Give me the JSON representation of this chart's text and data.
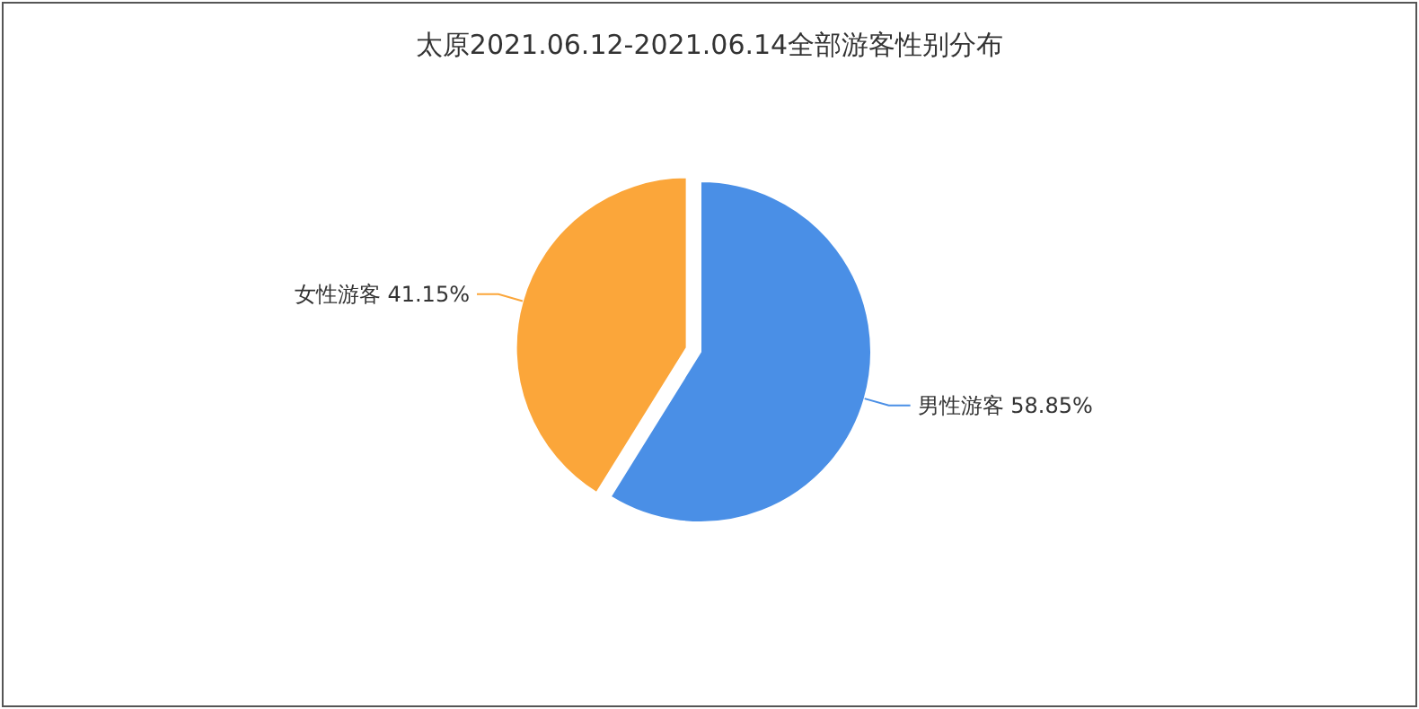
{
  "chart_data": {
    "type": "pie",
    "title": "太原2021.06.12-2021.06.14全部游客性别分布",
    "categories": [
      "男性游客",
      "女性游客"
    ],
    "values": [
      58.85,
      41.15
    ],
    "colors": [
      "#4a8fe6",
      "#fba63a"
    ],
    "value_labels": [
      "58.85%",
      "41.15%"
    ]
  }
}
